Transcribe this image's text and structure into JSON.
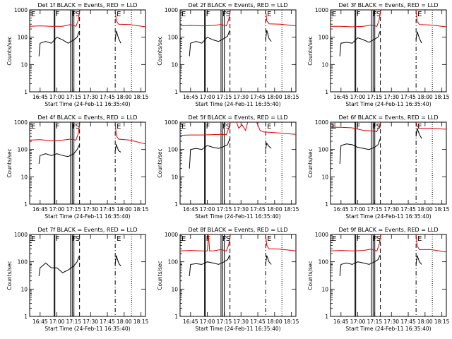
{
  "figure": {
    "background": "#ffffff",
    "axis_color": "#000000",
    "events_color": "#000000",
    "lld_color": "#dd0000"
  },
  "shared": {
    "xlabel": "Start Time (24-Feb-11 16:35:40)",
    "ylabel": "Counts/sec",
    "xlim": [
      "16:35:40",
      "18:19:00"
    ],
    "ylim": [
      1,
      1000
    ],
    "yscale": "log",
    "x_ticks": [
      "16:45",
      "17:00",
      "17:15",
      "17:30",
      "17:45",
      "18:00",
      "18:15"
    ],
    "y_ticks": [
      {
        "value": 1,
        "label": "1"
      },
      {
        "value": 10,
        "label": "10"
      },
      {
        "value": 100,
        "label": "100"
      },
      {
        "value": 1000,
        "label": "1000"
      }
    ],
    "markers": [
      {
        "time": "16:35:40",
        "style": "solid",
        "label": "E"
      },
      {
        "time": "16:57:30",
        "style": "solid",
        "label": "F"
      },
      {
        "time": "16:58:10",
        "style": "solid",
        "label": ""
      },
      {
        "time": "17:12:10",
        "style": "solid",
        "label": "F"
      },
      {
        "time": "17:13:40",
        "style": "solid",
        "label": ""
      },
      {
        "time": "17:15:10",
        "style": "solid",
        "label": "S"
      },
      {
        "time": "17:20:10",
        "style": "dashed",
        "label": ""
      },
      {
        "time": "17:52:00",
        "style": "dashdot",
        "label": "E"
      },
      {
        "time": "18:06:30",
        "style": "dotted",
        "label": ""
      }
    ]
  },
  "chart_data": [
    {
      "type": "line",
      "title": "Det 1f BLACK = Events, RED = LLD",
      "series": [
        {
          "name": "Events",
          "color": "#000000",
          "segments": [
            {
              "x": [
                "16:44:00",
                "16:45:00",
                "16:50:00",
                "16:55:00",
                "17:00:00",
                "17:05:00",
                "17:10:00",
                "17:15:00",
                "17:18:00",
                "17:20:00"
              ],
              "y": [
                20,
                60,
                70,
                60,
                100,
                80,
                60,
                80,
                100,
                170
              ]
            },
            {
              "x": [
                "17:52:00",
                "17:53:00",
                "17:55:00",
                "17:57:00"
              ],
              "y": [
                80,
                170,
                90,
                60
              ]
            }
          ]
        },
        {
          "name": "LLD",
          "color": "#dd0000",
          "segments": [
            {
              "x": [
                "16:35:40",
                "16:45:00",
                "16:55:00",
                "17:05:00",
                "17:12:00",
                "17:17:00",
                "17:19:00",
                "17:20:30"
              ],
              "y": [
                250,
                260,
                250,
                250,
                290,
                250,
                420,
                1000
              ]
            },
            {
              "x": [
                "17:52:00",
                "17:53:00",
                "17:55:00",
                "18:05:00",
                "18:19:00"
              ],
              "y": [
                1000,
                400,
                300,
                290,
                240
              ]
            }
          ]
        }
      ]
    },
    {
      "type": "line",
      "title": "Det 2f BLACK = Events, RED = LLD",
      "series": [
        {
          "name": "Events",
          "color": "#000000",
          "segments": [
            {
              "x": [
                "16:44:00",
                "16:45:00",
                "16:50:00",
                "16:55:00",
                "17:00:00",
                "17:05:00",
                "17:10:00",
                "17:15:00",
                "17:18:00",
                "17:20:00"
              ],
              "y": [
                20,
                60,
                70,
                60,
                100,
                80,
                70,
                90,
                110,
                180
              ]
            },
            {
              "x": [
                "17:52:00",
                "17:53:00",
                "17:55:00",
                "17:57:00"
              ],
              "y": [
                80,
                180,
                90,
                70
              ]
            }
          ]
        },
        {
          "name": "LLD",
          "color": "#dd0000",
          "segments": [
            {
              "x": [
                "16:35:40",
                "16:45:00",
                "16:55:00",
                "17:05:00",
                "17:12:00",
                "17:17:00",
                "17:19:00",
                "17:20:30"
              ],
              "y": [
                260,
                270,
                260,
                270,
                290,
                260,
                440,
                1000
              ]
            },
            {
              "x": [
                "17:52:00",
                "17:53:00",
                "17:55:00",
                "18:05:00",
                "18:19:00"
              ],
              "y": [
                1000,
                400,
                310,
                300,
                260
              ]
            }
          ]
        }
      ]
    },
    {
      "type": "line",
      "title": "Det 3f BLACK = Events, RED = LLD",
      "series": [
        {
          "name": "Events",
          "color": "#000000",
          "segments": [
            {
              "x": [
                "16:44:00",
                "16:45:00",
                "16:50:00",
                "16:55:00",
                "17:00:00",
                "17:05:00",
                "17:10:00",
                "17:15:00",
                "17:18:00",
                "17:20:00"
              ],
              "y": [
                20,
                60,
                65,
                60,
                95,
                80,
                65,
                85,
                100,
                170
              ]
            },
            {
              "x": [
                "17:52:00",
                "17:53:00",
                "17:55:00",
                "17:57:00"
              ],
              "y": [
                80,
                160,
                90,
                60
              ]
            }
          ]
        },
        {
          "name": "LLD",
          "color": "#dd0000",
          "segments": [
            {
              "x": [
                "16:35:40",
                "16:45:00",
                "16:55:00",
                "17:05:00",
                "17:12:00",
                "17:17:00",
                "17:19:00",
                "17:20:30"
              ],
              "y": [
                250,
                250,
                240,
                250,
                280,
                250,
                420,
                1000
              ]
            },
            {
              "x": [
                "17:52:00",
                "17:53:00",
                "17:55:00",
                "18:05:00",
                "18:19:00"
              ],
              "y": [
                1000,
                380,
                290,
                280,
                240
              ]
            }
          ]
        }
      ]
    },
    {
      "type": "line",
      "title": "Det 4f BLACK = Events, RED = LLD",
      "series": [
        {
          "name": "Events",
          "color": "#000000",
          "segments": [
            {
              "x": [
                "16:44:00",
                "16:45:00",
                "16:50:00",
                "16:55:00",
                "17:00:00",
                "17:05:00",
                "17:10:00",
                "17:15:00",
                "17:18:00",
                "17:20:00"
              ],
              "y": [
                30,
                60,
                70,
                60,
                70,
                60,
                55,
                70,
                100,
                150
              ]
            },
            {
              "x": [
                "17:52:00",
                "17:53:00",
                "17:55:00",
                "17:57:00"
              ],
              "y": [
                90,
                150,
                90,
                80
              ]
            }
          ]
        },
        {
          "name": "LLD",
          "color": "#dd0000",
          "segments": [
            {
              "x": [
                "16:35:40",
                "16:45:00",
                "16:55:00",
                "17:05:00",
                "17:12:00",
                "17:17:00",
                "17:19:00",
                "17:20:30"
              ],
              "y": [
                220,
                230,
                210,
                220,
                240,
                220,
                380,
                1000
              ]
            },
            {
              "x": [
                "17:52:00",
                "17:53:00",
                "17:55:00",
                "18:05:00",
                "18:19:00"
              ],
              "y": [
                1000,
                320,
                240,
                220,
                160
              ]
            }
          ]
        }
      ]
    },
    {
      "type": "line",
      "title": "Det 5f BLACK = Events, RED = LLD",
      "series": [
        {
          "name": "Events",
          "color": "#000000",
          "segments": [
            {
              "x": [
                "16:44:00",
                "16:45:00",
                "16:50:00",
                "16:55:00",
                "17:00:00",
                "17:05:00",
                "17:10:00",
                "17:15:00",
                "17:18:00",
                "17:20:00"
              ],
              "y": [
                20,
                100,
                110,
                100,
                140,
                120,
                110,
                130,
                150,
                250
              ]
            },
            {
              "x": [
                "17:52:00",
                "17:53:00",
                "17:55:00",
                "17:57:00"
              ],
              "y": [
                100,
                170,
                130,
                110
              ]
            }
          ]
        },
        {
          "name": "LLD",
          "color": "#dd0000",
          "segments": [
            {
              "x": [
                "16:35:40",
                "16:45:00",
                "16:55:00",
                "17:05:00",
                "17:12:00",
                "17:17:00",
                "17:19:00",
                "17:20:30"
              ],
              "y": [
                330,
                340,
                340,
                350,
                360,
                350,
                600,
                1000
              ]
            },
            {
              "x": [
                "17:26:00",
                "17:28:00",
                "17:31:00",
                "17:34:00",
                "17:36:00"
              ],
              "y": [
                1000,
                600,
                800,
                500,
                1000
              ]
            },
            {
              "x": [
                "17:44:00",
                "17:47:00",
                "17:50:00",
                "17:55:00",
                "18:05:00",
                "18:19:00"
              ],
              "y": [
                1000,
                500,
                440,
                430,
                400,
                360
              ]
            }
          ]
        }
      ]
    },
    {
      "type": "line",
      "title": "Det 6f BLACK = Events, RED = LLD",
      "series": [
        {
          "name": "Events",
          "color": "#000000",
          "segments": [
            {
              "x": [
                "16:44:00",
                "16:45:00",
                "16:50:00",
                "16:55:00",
                "17:00:00",
                "17:05:00",
                "17:10:00",
                "17:15:00",
                "17:18:00",
                "17:20:00"
              ],
              "y": [
                30,
                140,
                160,
                150,
                120,
                110,
                100,
                120,
                150,
                250
              ]
            },
            {
              "x": [
                "17:52:00",
                "17:53:00",
                "17:55:00",
                "17:57:00"
              ],
              "y": [
                300,
                600,
                350,
                250
              ]
            }
          ]
        },
        {
          "name": "LLD",
          "color": "#dd0000",
          "segments": [
            {
              "x": [
                "16:35:40",
                "16:45:00",
                "16:55:00",
                "17:05:00",
                "17:12:00",
                "17:17:00",
                "17:19:00",
                "17:20:30"
              ],
              "y": [
                650,
                650,
                620,
                500,
                480,
                450,
                700,
                1000
              ]
            },
            {
              "x": [
                "17:52:00",
                "17:53:00",
                "17:55:00",
                "18:05:00",
                "18:19:00"
              ],
              "y": [
                1000,
                700,
                600,
                600,
                550
              ]
            }
          ]
        }
      ]
    },
    {
      "type": "line",
      "title": "Det 7f BLACK = Events, RED = LLD",
      "series": [
        {
          "name": "Events",
          "color": "#000000",
          "segments": [
            {
              "x": [
                "16:44:00",
                "16:45:00",
                "16:50:00",
                "16:55:00",
                "17:00:00",
                "17:05:00",
                "17:10:00",
                "17:15:00",
                "17:18:00",
                "17:20:00"
              ],
              "y": [
                30,
                60,
                90,
                60,
                60,
                40,
                50,
                70,
                100,
                170
              ]
            },
            {
              "x": [
                "17:52:00",
                "17:53:00",
                "17:55:00",
                "17:57:00"
              ],
              "y": [
                80,
                170,
                90,
                70
              ]
            }
          ]
        }
      ]
    },
    {
      "type": "line",
      "title": "Det 8f BLACK = Events, RED = LLD",
      "series": [
        {
          "name": "Events",
          "color": "#000000",
          "segments": [
            {
              "x": [
                "16:44:00",
                "16:45:00",
                "16:50:00",
                "16:55:00",
                "17:00:00",
                "17:05:00",
                "17:10:00",
                "17:15:00",
                "17:18:00",
                "17:20:00"
              ],
              "y": [
                30,
                80,
                85,
                80,
                100,
                90,
                80,
                100,
                120,
                180
              ]
            },
            {
              "x": [
                "17:52:00",
                "17:53:00",
                "17:55:00",
                "17:57:00"
              ],
              "y": [
                80,
                170,
                100,
                80
              ]
            }
          ]
        },
        {
          "name": "LLD",
          "color": "#dd0000",
          "segments": [
            {
              "x": [
                "16:35:40",
                "16:45:00",
                "16:55:00",
                "17:00:00",
                "17:01:00",
                "17:02:00",
                "17:05:00",
                "17:12:00",
                "17:17:00",
                "17:19:00",
                "17:20:30"
              ],
              "y": [
                250,
                260,
                250,
                250,
                1000,
                250,
                250,
                280,
                250,
                420,
                1000
              ]
            },
            {
              "x": [
                "17:52:00",
                "17:53:00",
                "17:55:00",
                "18:05:00",
                "18:19:00"
              ],
              "y": [
                1000,
                400,
                300,
                290,
                250
              ]
            }
          ]
        }
      ]
    },
    {
      "type": "line",
      "title": "Det 9f BLACK = Events, RED = LLD",
      "series": [
        {
          "name": "Events",
          "color": "#000000",
          "segments": [
            {
              "x": [
                "16:44:00",
                "16:45:00",
                "16:50:00",
                "16:55:00",
                "17:00:00",
                "17:05:00",
                "17:10:00",
                "17:15:00",
                "17:18:00",
                "17:20:00"
              ],
              "y": [
                30,
                80,
                90,
                80,
                100,
                90,
                80,
                100,
                120,
                180
              ]
            },
            {
              "x": [
                "17:52:00",
                "17:53:00",
                "17:55:00",
                "17:57:00"
              ],
              "y": [
                80,
                170,
                100,
                80
              ]
            }
          ]
        },
        {
          "name": "LLD",
          "color": "#dd0000",
          "segments": [
            {
              "x": [
                "16:35:40",
                "16:45:00",
                "16:55:00",
                "17:05:00",
                "17:12:00",
                "17:17:00",
                "17:19:00",
                "17:20:30"
              ],
              "y": [
                250,
                260,
                250,
                260,
                290,
                250,
                420,
                1000
              ]
            },
            {
              "x": [
                "17:52:00",
                "17:53:00",
                "17:55:00",
                "18:05:00",
                "18:19:00"
              ],
              "y": [
                1000,
                380,
                280,
                280,
                230
              ]
            }
          ]
        }
      ]
    }
  ]
}
